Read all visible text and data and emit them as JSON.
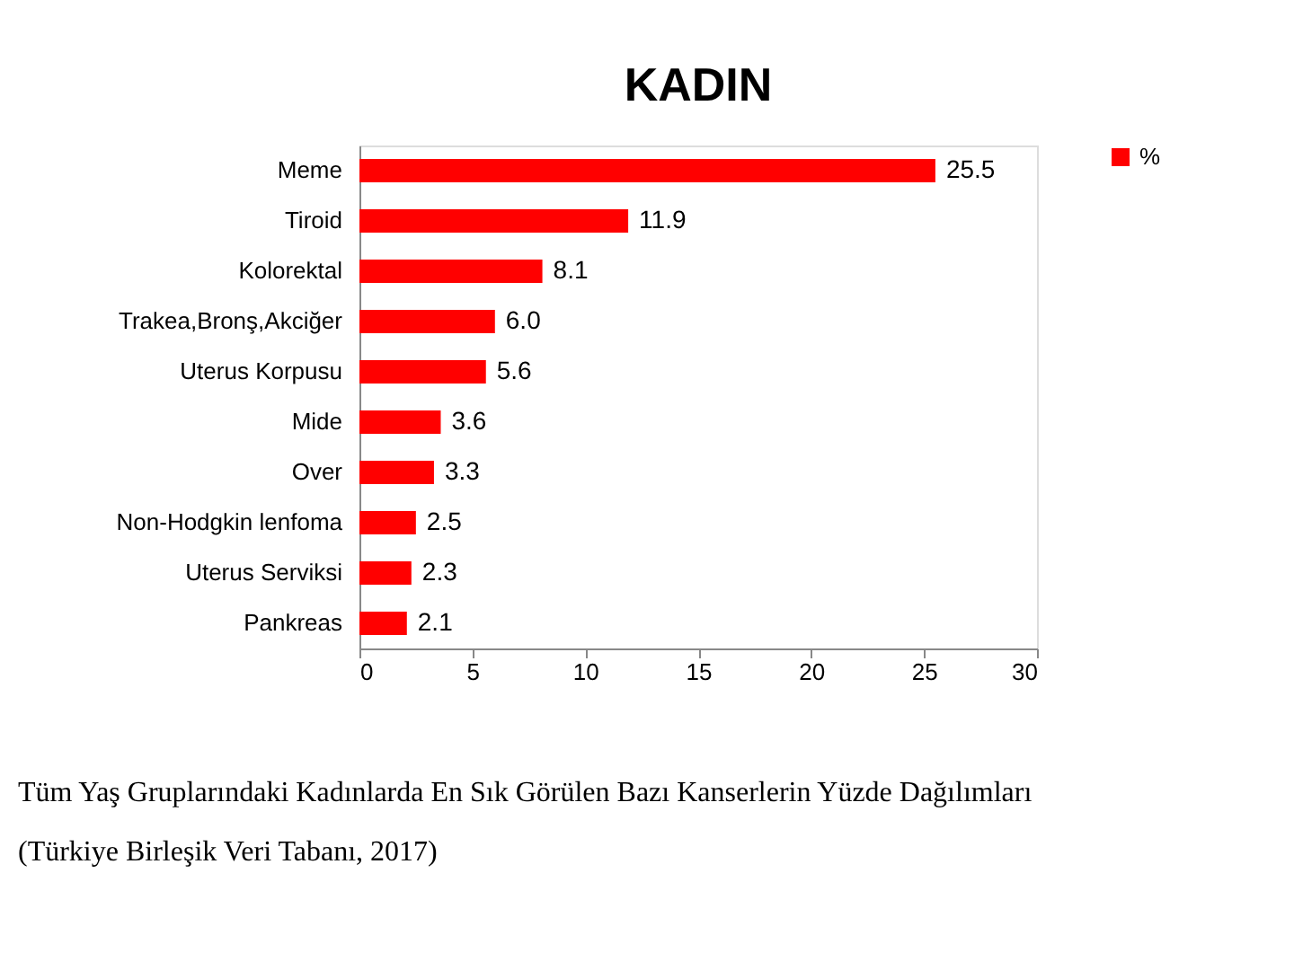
{
  "chart_data": {
    "type": "bar",
    "orientation": "horizontal",
    "title": "KADIN",
    "categories": [
      "Meme",
      "Tiroid",
      "Kolorektal",
      "Trakea,Bronş,Akciğer",
      "Uterus Korpusu",
      "Mide",
      "Over",
      "Non-Hodgkin lenfoma",
      "Uterus Serviksi",
      "Pankreas"
    ],
    "series": [
      {
        "name": "%",
        "color": "#ff0000",
        "values": [
          25.5,
          11.9,
          8.1,
          6.0,
          5.6,
          3.6,
          3.3,
          2.5,
          2.3,
          2.1
        ],
        "value_labels": [
          "25.5",
          "11.9",
          "8.1",
          "6.0",
          "5.6",
          "3.6",
          "3.3",
          "2.5",
          "2.3",
          "2.1"
        ]
      }
    ],
    "xlim": [
      0,
      30
    ],
    "xticks": [
      0,
      5,
      10,
      15,
      20,
      25,
      30
    ],
    "grid": false,
    "legend": "right",
    "annotations": [
      "Tüm Yaş Gruplarındaki Kadınlarda En Sık Görülen Bazı Kanserlerin Yüzde Dağılımları",
      "(Türkiye Birleşik Veri Tabanı, 2017)"
    ]
  }
}
